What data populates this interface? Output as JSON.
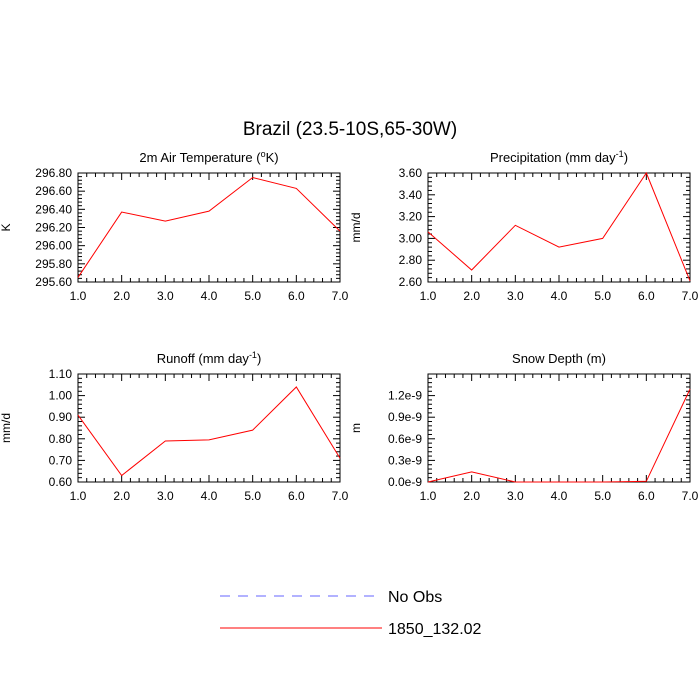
{
  "figure_title": "Brazil (23.5-10S,65-30W)",
  "legend": [
    {
      "label": "No Obs",
      "color": "#6666ff",
      "dashed": true
    },
    {
      "label": "1850_132.02",
      "color": "#ff0000",
      "dashed": false
    }
  ],
  "chart_data": [
    {
      "type": "line",
      "title": "2m Air Temperature (°K)",
      "ylabel": "K",
      "x": [
        1,
        2,
        3,
        4,
        5,
        6,
        7
      ],
      "xlim": [
        1,
        7
      ],
      "xticks": [
        "1.0",
        "2.0",
        "3.0",
        "4.0",
        "5.0",
        "6.0",
        "7.0"
      ],
      "ylim": [
        295.6,
        296.8
      ],
      "yticks": [
        {
          "value": 295.6,
          "label": "295.60"
        },
        {
          "value": 295.8,
          "label": "295.80"
        },
        {
          "value": 296.0,
          "label": "296.00"
        },
        {
          "value": 296.2,
          "label": "296.20"
        },
        {
          "value": 296.4,
          "label": "296.40"
        },
        {
          "value": 296.6,
          "label": "296.60"
        },
        {
          "value": 296.8,
          "label": "296.80"
        }
      ],
      "series": [
        {
          "name": "1850_132.02",
          "color": "#ff0000",
          "values": [
            295.65,
            296.37,
            296.27,
            296.38,
            296.75,
            296.63,
            296.16
          ]
        }
      ]
    },
    {
      "type": "line",
      "title": "Precipitation (mm day-1)",
      "ylabel": "mm/d",
      "x": [
        1,
        2,
        3,
        4,
        5,
        6,
        7
      ],
      "xlim": [
        1,
        7
      ],
      "xticks": [
        "1.0",
        "2.0",
        "3.0",
        "4.0",
        "5.0",
        "6.0",
        "7.0"
      ],
      "ylim": [
        2.6,
        3.6
      ],
      "yticks": [
        {
          "value": 2.6,
          "label": "2.60"
        },
        {
          "value": 2.8,
          "label": "2.80"
        },
        {
          "value": 3.0,
          "label": "3.00"
        },
        {
          "value": 3.2,
          "label": "3.20"
        },
        {
          "value": 3.4,
          "label": "3.40"
        },
        {
          "value": 3.6,
          "label": "3.60"
        }
      ],
      "series": [
        {
          "name": "1850_132.02",
          "color": "#ff0000",
          "values": [
            3.06,
            2.71,
            3.12,
            2.92,
            3.0,
            3.6,
            2.61
          ]
        }
      ]
    },
    {
      "type": "line",
      "title": "Runoff (mm day-1)",
      "ylabel": "mm/d",
      "x": [
        1,
        2,
        3,
        4,
        5,
        6,
        7
      ],
      "xlim": [
        1,
        7
      ],
      "xticks": [
        "1.0",
        "2.0",
        "3.0",
        "4.0",
        "5.0",
        "6.0",
        "7.0"
      ],
      "ylim": [
        0.6,
        1.1
      ],
      "yticks": [
        {
          "value": 0.6,
          "label": "0.60"
        },
        {
          "value": 0.7,
          "label": "0.70"
        },
        {
          "value": 0.8,
          "label": "0.80"
        },
        {
          "value": 0.9,
          "label": "0.90"
        },
        {
          "value": 1.0,
          "label": "1.00"
        },
        {
          "value": 1.1,
          "label": "1.10"
        }
      ],
      "series": [
        {
          "name": "1850_132.02",
          "color": "#ff0000",
          "values": [
            0.91,
            0.63,
            0.79,
            0.795,
            0.84,
            1.04,
            0.71
          ]
        }
      ]
    },
    {
      "type": "line",
      "title": "Snow Depth (m)",
      "ylabel": "m",
      "x": [
        1,
        2,
        3,
        4,
        5,
        6,
        7
      ],
      "xlim": [
        1,
        7
      ],
      "xticks": [
        "1.0",
        "2.0",
        "3.0",
        "4.0",
        "5.0",
        "6.0",
        "7.0"
      ],
      "ylim": [
        0,
        1.5e-09
      ],
      "yticks": [
        {
          "value": 0,
          "label": "0.0e-9"
        },
        {
          "value": 3e-10,
          "label": "0.3e-9"
        },
        {
          "value": 6e-10,
          "label": "0.6e-9"
        },
        {
          "value": 9e-10,
          "label": "0.9e-9"
        },
        {
          "value": 1.2e-09,
          "label": "1.2e-9"
        }
      ],
      "series": [
        {
          "name": "1850_132.02",
          "color": "#ff0000",
          "values": [
            0,
            1.4e-10,
            0,
            0,
            0,
            1e-11,
            1.29e-09
          ]
        }
      ]
    }
  ]
}
